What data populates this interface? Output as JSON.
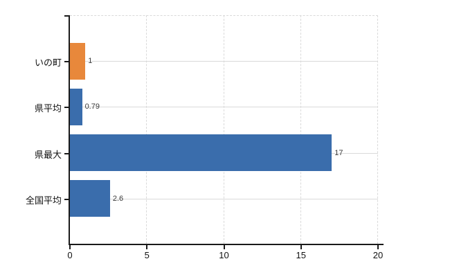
{
  "chart_data": {
    "type": "bar",
    "orientation": "horizontal",
    "title": "",
    "xlabel": "",
    "ylabel": "",
    "categories": [
      "いの町",
      "県平均",
      "県最大",
      "全国平均"
    ],
    "values": [
      1,
      0.79,
      17,
      2.6
    ],
    "value_labels": [
      "1",
      "0.79",
      "17",
      "2.6"
    ],
    "bar_colors": [
      "#E8883B",
      "#3A6DAC",
      "#3A6DAC",
      "#3A6DAC"
    ],
    "highlight_category": "いの町",
    "xlim": [
      0,
      20
    ],
    "x_ticks": [
      0,
      5,
      10,
      15,
      20
    ],
    "x_tick_labels": [
      "0",
      "5",
      "10",
      "15",
      "20"
    ],
    "grid": true,
    "legend": false
  },
  "colors": {
    "bar_orange": "#E8883B",
    "bar_blue": "#3A6DAC",
    "gridline": "#D9D9D9",
    "axis": "#1A1A1A",
    "value_label_text": "#3A3A3A",
    "tick_label_text": "#111111",
    "background": "#FFFFFF"
  }
}
